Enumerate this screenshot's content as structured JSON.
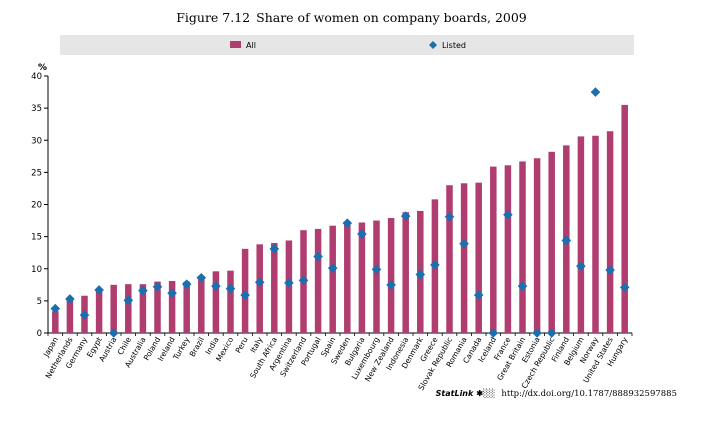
{
  "figure": {
    "label": "Figure 7.12",
    "title": "Share of women on company boards, 2009"
  },
  "footer": {
    "statlink": "StatLink",
    "statlink_logo": "✱░░",
    "url": "http://dx.doi.org/10.1787/888932597885"
  },
  "colors": {
    "bar": "#b03d70",
    "marker": "#1a6fae",
    "legend_bg": "#e6e6e6",
    "axis": "#000000"
  },
  "chart_data": {
    "type": "bar",
    "ylabel": "%",
    "ylim": [
      0,
      40
    ],
    "yticks": [
      0,
      5,
      10,
      15,
      20,
      25,
      30,
      35,
      40
    ],
    "grid": false,
    "legend_position": "top",
    "categories": [
      "Japan",
      "Netherlands",
      "Germany",
      "Egypt",
      "Austria",
      "Chile",
      "Australia",
      "Poland",
      "Ireland",
      "Turkey",
      "Brazil",
      "India",
      "Mexico",
      "Peru",
      "Italy",
      "South Africa",
      "Argentina",
      "Switzerland",
      "Portugal",
      "Spain",
      "Sweden",
      "Bulgaria",
      "Luxembourg",
      "New Zealand",
      "Indonesia",
      "Denmark",
      "Greece",
      "Slovak Republic",
      "Romania",
      "Canada",
      "Iceland",
      "France",
      "Great Britain",
      "Estonia",
      "Czech Republic",
      "Finland",
      "Belgium",
      "Norway",
      "United States",
      "Hungary"
    ],
    "series": [
      {
        "name": "All",
        "kind": "bar",
        "values": [
          3.4,
          5.3,
          5.8,
          6.7,
          7.5,
          7.6,
          7.6,
          8.0,
          8.1,
          8.0,
          8.5,
          9.6,
          9.7,
          13.1,
          13.8,
          14.0,
          14.4,
          16.0,
          16.2,
          16.7,
          17.0,
          17.2,
          17.5,
          17.9,
          18.8,
          19.0,
          20.8,
          23.0,
          23.3,
          23.4,
          25.9,
          26.1,
          26.7,
          27.2,
          28.2,
          29.2,
          30.6,
          30.7,
          31.4,
          35.5
        ]
      },
      {
        "name": "Listed",
        "kind": "marker",
        "values": [
          3.8,
          5.3,
          2.8,
          6.7,
          0.0,
          5.1,
          6.6,
          7.2,
          6.2,
          7.6,
          8.6,
          7.3,
          6.9,
          5.9,
          7.9,
          13.1,
          7.8,
          8.2,
          11.9,
          10.1,
          17.1,
          15.4,
          9.9,
          7.5,
          18.2,
          9.1,
          10.6,
          18.1,
          13.9,
          5.9,
          0.0,
          18.4,
          7.3,
          0.0,
          0.0,
          14.4,
          10.4,
          37.5,
          9.8,
          7.1
        ]
      }
    ]
  }
}
